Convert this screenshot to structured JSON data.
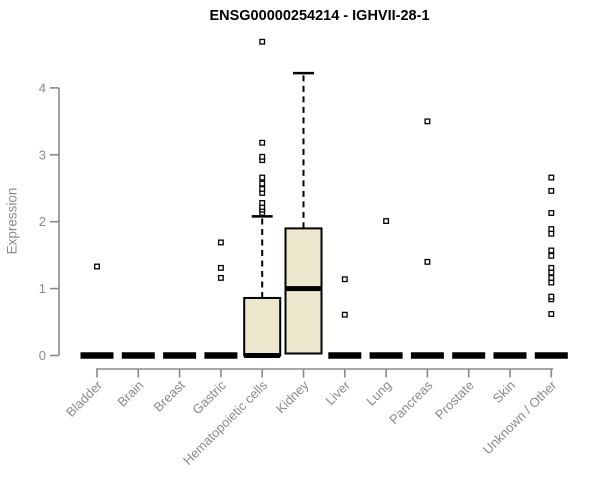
{
  "chart_data": {
    "type": "boxplot",
    "title": "ENSG00000254214 - IGHVII-28-1",
    "ylabel": "Expression",
    "xlabel": "",
    "ylim": [
      0,
      4.7
    ],
    "yticks": [
      0,
      1,
      2,
      3,
      4
    ],
    "grid": false,
    "legend": "none",
    "categories": [
      "Bladder",
      "Brain",
      "Breast",
      "Gastric",
      "Hematopoietic cells",
      "Kidney",
      "Liver",
      "Lung",
      "Pancreas",
      "Prostate",
      "Skin",
      "Unknown / Other"
    ],
    "series": [
      {
        "category": "Bladder",
        "whisker_low": 0,
        "q1": 0,
        "median": 0,
        "q3": 0,
        "whisker_high": 0,
        "outliers": [
          1.33
        ]
      },
      {
        "category": "Brain",
        "whisker_low": 0,
        "q1": 0,
        "median": 0,
        "q3": 0,
        "whisker_high": 0,
        "outliers": []
      },
      {
        "category": "Breast",
        "whisker_low": 0,
        "q1": 0,
        "median": 0,
        "q3": 0,
        "whisker_high": 0,
        "outliers": []
      },
      {
        "category": "Gastric",
        "whisker_low": 0,
        "q1": 0,
        "median": 0,
        "q3": 0,
        "whisker_high": 0,
        "outliers": [
          1.16,
          1.31,
          1.69
        ]
      },
      {
        "category": "Hematopoietic cells",
        "whisker_low": 0,
        "q1": 0,
        "median": 0,
        "q3": 0.86,
        "whisker_high": 2.08,
        "outliers": [
          2.13,
          2.18,
          2.22,
          2.28,
          2.43,
          2.49,
          2.57,
          2.66,
          2.92,
          2.97,
          3.18,
          4.69
        ]
      },
      {
        "category": "Kidney",
        "whisker_low": 0.03,
        "q1": 0.03,
        "median": 1.0,
        "q3": 1.9,
        "whisker_high": 4.22,
        "outliers": []
      },
      {
        "category": "Liver",
        "whisker_low": 0,
        "q1": 0,
        "median": 0,
        "q3": 0,
        "whisker_high": 0,
        "outliers": [
          0.61,
          1.14
        ]
      },
      {
        "category": "Lung",
        "whisker_low": 0,
        "q1": 0,
        "median": 0,
        "q3": 0,
        "whisker_high": 0,
        "outliers": [
          2.01
        ]
      },
      {
        "category": "Pancreas",
        "whisker_low": 0,
        "q1": 0,
        "median": 0,
        "q3": 0,
        "whisker_high": 0,
        "outliers": [
          1.4,
          3.5
        ]
      },
      {
        "category": "Prostate",
        "whisker_low": 0,
        "q1": 0,
        "median": 0,
        "q3": 0,
        "whisker_high": 0,
        "outliers": []
      },
      {
        "category": "Skin",
        "whisker_low": 0,
        "q1": 0,
        "median": 0,
        "q3": 0,
        "whisker_high": 0,
        "outliers": []
      },
      {
        "category": "Unknown / Other",
        "whisker_low": 0,
        "q1": 0,
        "median": 0,
        "q3": 0,
        "whisker_high": 0,
        "outliers": [
          0.62,
          0.84,
          0.88,
          1.09,
          1.16,
          1.24,
          1.31,
          1.49,
          1.57,
          1.82,
          1.89,
          2.13,
          2.46,
          2.66
        ]
      }
    ],
    "style": {
      "box_fill": "#EDE8CD",
      "box_border": "#000000",
      "median_color": "#000000",
      "axis_color": "#8A8A8A",
      "title_color": "#000000",
      "outlier_shape": "open-square"
    }
  }
}
